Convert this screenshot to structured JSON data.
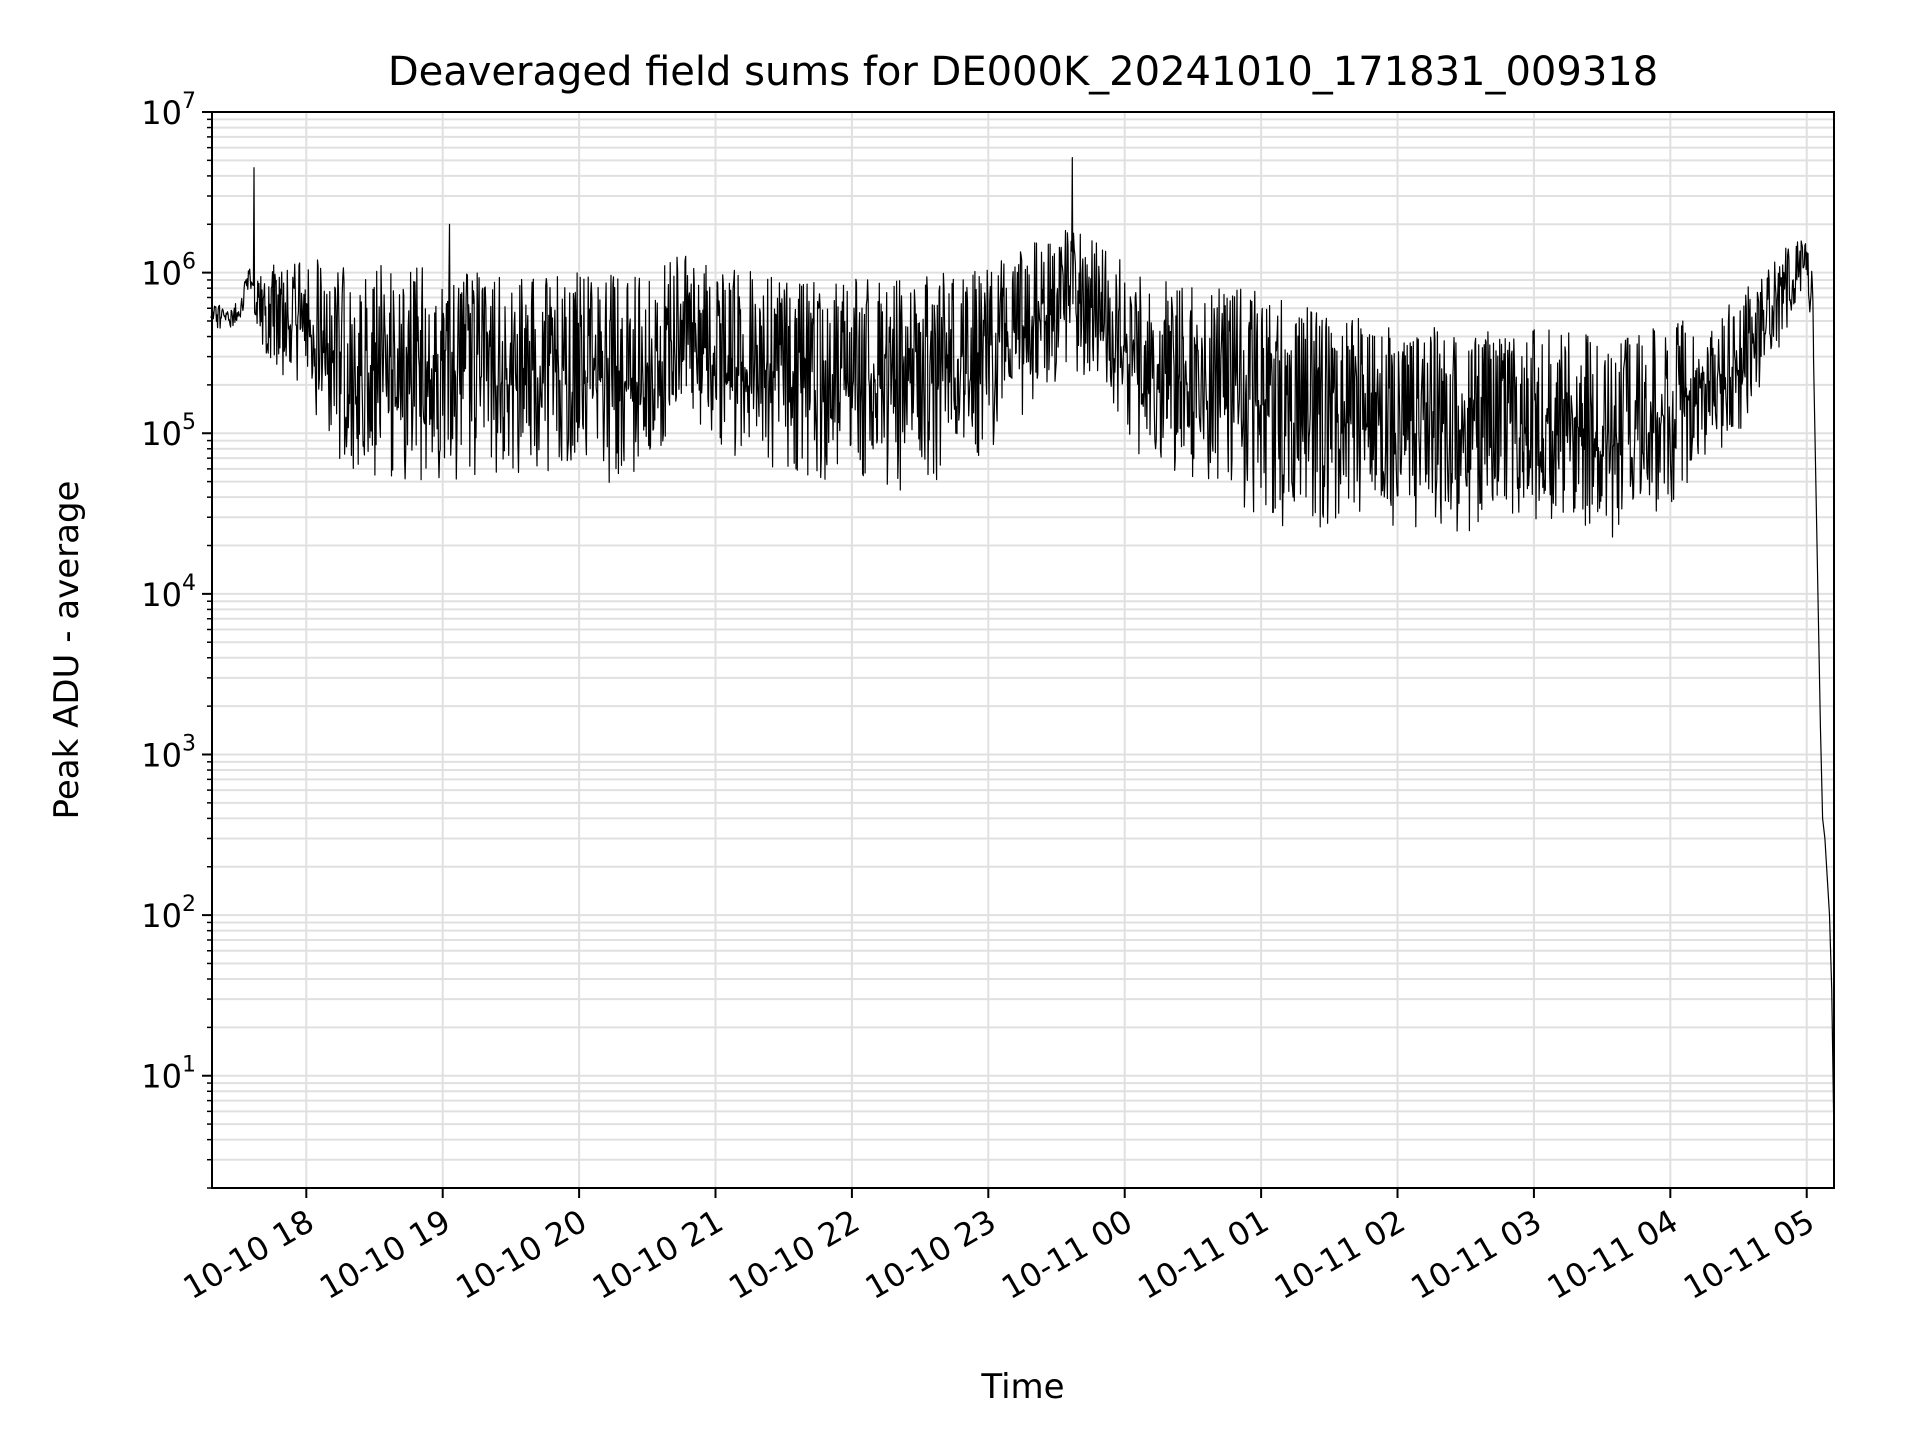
{
  "chart_data": {
    "type": "line",
    "title": "Deaveraged field sums for DE000K_20241010_171831_009318",
    "xlabel": "Time",
    "ylabel": "Peak ADU - average",
    "yscale": "log",
    "ylim": [
      2,
      10000000
    ],
    "xlim": [
      "2024-10-10 17:18:31",
      "2024-10-11 05:12:00"
    ],
    "grid": true,
    "line_color": "#000000",
    "grid_color": "#e0e0e0",
    "x_ticks": [
      {
        "at": "2024-10-10 18:00",
        "label": "10-10 18"
      },
      {
        "at": "2024-10-10 19:00",
        "label": "10-10 19"
      },
      {
        "at": "2024-10-10 20:00",
        "label": "10-10 20"
      },
      {
        "at": "2024-10-10 21:00",
        "label": "10-10 21"
      },
      {
        "at": "2024-10-10 22:00",
        "label": "10-10 22"
      },
      {
        "at": "2024-10-10 23:00",
        "label": "10-10 23"
      },
      {
        "at": "2024-10-11 00:00",
        "label": "10-11 00"
      },
      {
        "at": "2024-10-11 01:00",
        "label": "10-11 01"
      },
      {
        "at": "2024-10-11 02:00",
        "label": "10-11 02"
      },
      {
        "at": "2024-10-11 03:00",
        "label": "10-11 03"
      },
      {
        "at": "2024-10-11 04:00",
        "label": "10-11 04"
      },
      {
        "at": "2024-10-11 05:00",
        "label": "10-11 05"
      }
    ],
    "y_ticks": [
      {
        "base": "10",
        "exp": "1"
      },
      {
        "base": "10",
        "exp": "2"
      },
      {
        "base": "10",
        "exp": "3"
      },
      {
        "base": "10",
        "exp": "4"
      },
      {
        "base": "10",
        "exp": "5"
      },
      {
        "base": "10",
        "exp": "6"
      },
      {
        "base": "10",
        "exp": "7"
      }
    ],
    "series": [
      {
        "envelope": [
          {
            "t": "2024-10-10 17:18",
            "low": 450000,
            "high": 650000
          },
          {
            "t": "2024-10-10 17:30",
            "low": 450000,
            "high": 650000
          },
          {
            "t": "2024-10-10 17:35",
            "low": 800000,
            "high": 1100000
          },
          {
            "t": "2024-10-10 17:40",
            "low": 350000,
            "high": 1100000
          },
          {
            "t": "2024-10-10 17:55",
            "low": 150000,
            "high": 1300000
          },
          {
            "t": "2024-10-10 18:20",
            "low": 55000,
            "high": 1300000
          },
          {
            "t": "2024-10-10 18:45",
            "low": 45000,
            "high": 1100000
          },
          {
            "t": "2024-10-10 19:30",
            "low": 55000,
            "high": 1000000
          },
          {
            "t": "2024-10-10 20:30",
            "low": 45000,
            "high": 1000000
          },
          {
            "t": "2024-10-10 20:45",
            "low": 150000,
            "high": 1400000
          },
          {
            "t": "2024-10-10 21:00",
            "low": 80000,
            "high": 1100000
          },
          {
            "t": "2024-10-10 21:30",
            "low": 55000,
            "high": 1000000
          },
          {
            "t": "2024-10-10 22:20",
            "low": 40000,
            "high": 900000
          },
          {
            "t": "2024-10-10 23:00",
            "low": 70000,
            "high": 1100000
          },
          {
            "t": "2024-10-10 23:35",
            "low": 250000,
            "high": 2000000
          },
          {
            "t": "2024-10-10 23:50",
            "low": 200000,
            "high": 1500000
          },
          {
            "t": "2024-10-11 00:05",
            "low": 70000,
            "high": 1000000
          },
          {
            "t": "2024-10-11 00:40",
            "low": 45000,
            "high": 900000
          },
          {
            "t": "2024-10-11 01:10",
            "low": 22000,
            "high": 700000
          },
          {
            "t": "2024-10-11 01:40",
            "low": 25000,
            "high": 600000
          },
          {
            "t": "2024-10-11 02:00",
            "low": 22000,
            "high": 450000
          },
          {
            "t": "2024-10-11 02:30",
            "low": 24000,
            "high": 500000
          },
          {
            "t": "2024-10-11 03:00",
            "low": 25000,
            "high": 450000
          },
          {
            "t": "2024-10-11 03:40",
            "low": 22000,
            "high": 400000
          },
          {
            "t": "2024-10-11 04:00",
            "low": 35000,
            "high": 500000
          },
          {
            "t": "2024-10-11 04:30",
            "low": 100000,
            "high": 700000
          },
          {
            "t": "2024-10-11 04:50",
            "low": 400000,
            "high": 1500000
          },
          {
            "t": "2024-10-11 05:00",
            "low": 900000,
            "high": 1700000
          },
          {
            "t": "2024-10-11 05:03",
            "low": 300000,
            "high": 1000000
          }
        ],
        "spikes": [
          {
            "t": "2024-10-10 17:37",
            "y": 4500000
          },
          {
            "t": "2024-10-10 19:03",
            "y": 2000000
          },
          {
            "t": "2024-10-10 23:37",
            "y": 5200000
          }
        ],
        "tail": [
          {
            "t": "2024-10-11 05:03",
            "y": 300000
          },
          {
            "t": "2024-10-11 05:06",
            "y": 1500
          },
          {
            "t": "2024-10-11 05:07",
            "y": 400
          },
          {
            "t": "2024-10-11 05:08",
            "y": 300
          },
          {
            "t": "2024-10-11 05:10",
            "y": 100
          },
          {
            "t": "2024-10-11 05:11",
            "y": 35
          },
          {
            "t": "2024-10-11 05:12",
            "y": 4
          }
        ]
      }
    ]
  }
}
